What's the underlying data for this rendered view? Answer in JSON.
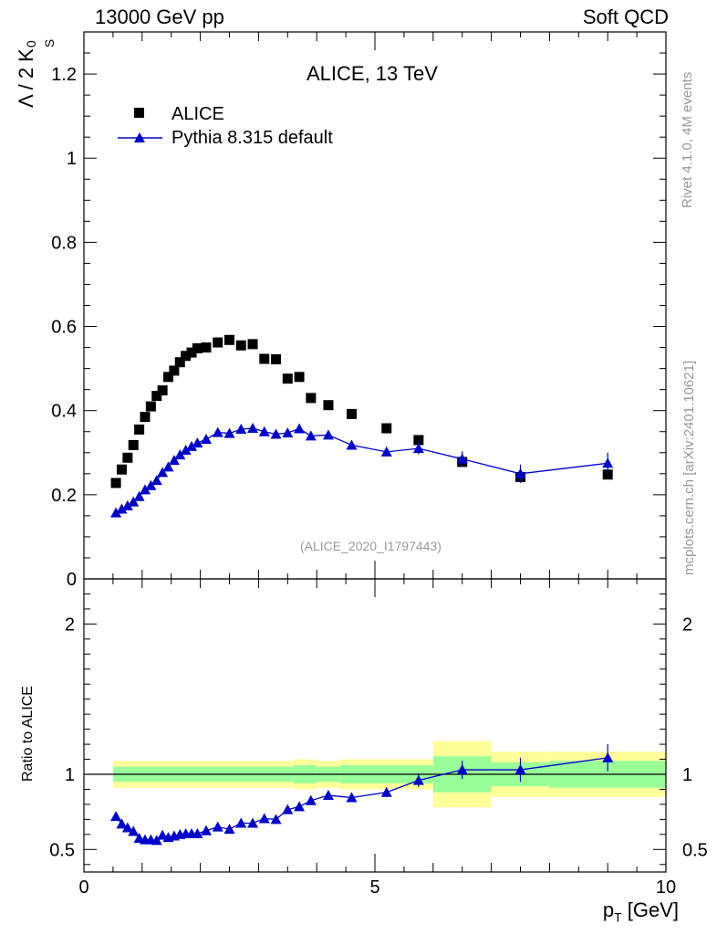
{
  "header": {
    "left": "13000 GeV pp",
    "right": "Soft QCD"
  },
  "side_labels": {
    "rivet": "Rivet 4.1.0,  4M events",
    "mcplots": "mcplots.cern.ch [arXiv:2401.10621]"
  },
  "colors": {
    "data": "#000000",
    "mc": "#0000cc",
    "band_inner": "#99ff99",
    "band_outer": "#ffff99",
    "watermark": "#999999"
  },
  "chart_data": [
    {
      "type": "scatter",
      "panel": "main",
      "title": "ALICE, 13 TeV",
      "watermark": "(ALICE_2020_I1797443)",
      "xlabel": "p_T [GeV]",
      "ylabel": "Λ / 2 K0S",
      "ylabel_parts": {
        "main": "Λ / 2 K",
        "sup": "0",
        "sub": "S"
      },
      "xlim": [
        0,
        10
      ],
      "ylim": [
        0,
        1.3
      ],
      "yticks": [
        0,
        0.2,
        0.4,
        0.6,
        0.8,
        1,
        1.2
      ],
      "ytick_labels": [
        "0",
        "0.2",
        "0.4",
        "0.6",
        "0.8",
        "1",
        "1.2"
      ],
      "legend_position": "top-left",
      "series": [
        {
          "name": "ALICE",
          "marker": "square",
          "x": [
            0.55,
            0.65,
            0.75,
            0.85,
            0.95,
            1.05,
            1.15,
            1.25,
            1.35,
            1.45,
            1.55,
            1.65,
            1.75,
            1.85,
            1.95,
            2.1,
            2.3,
            2.5,
            2.7,
            2.9,
            3.1,
            3.3,
            3.5,
            3.7,
            3.9,
            4.2,
            4.6,
            5.2,
            5.75,
            6.5,
            7.5,
            9.0
          ],
          "y": [
            0.228,
            0.26,
            0.288,
            0.318,
            0.355,
            0.385,
            0.41,
            0.435,
            0.448,
            0.48,
            0.495,
            0.515,
            0.53,
            0.538,
            0.548,
            0.55,
            0.562,
            0.568,
            0.555,
            0.558,
            0.523,
            0.522,
            0.476,
            0.48,
            0.43,
            0.413,
            0.392,
            0.358,
            0.33,
            0.278,
            0.242,
            0.248
          ]
        },
        {
          "name": "Pythia 8.315 default",
          "marker": "triangle",
          "x": [
            0.55,
            0.65,
            0.75,
            0.85,
            0.95,
            1.05,
            1.15,
            1.25,
            1.35,
            1.45,
            1.55,
            1.65,
            1.75,
            1.85,
            1.95,
            2.1,
            2.3,
            2.5,
            2.7,
            2.9,
            3.1,
            3.3,
            3.5,
            3.7,
            3.9,
            4.2,
            4.6,
            5.2,
            5.75,
            6.5,
            7.5,
            9.0
          ],
          "y": [
            0.157,
            0.166,
            0.174,
            0.183,
            0.196,
            0.212,
            0.222,
            0.234,
            0.253,
            0.266,
            0.282,
            0.295,
            0.306,
            0.315,
            0.323,
            0.332,
            0.348,
            0.346,
            0.356,
            0.358,
            0.35,
            0.344,
            0.347,
            0.357,
            0.34,
            0.342,
            0.318,
            0.302,
            0.31,
            0.285,
            0.25,
            0.275
          ],
          "yerr": [
            0.003,
            0.003,
            0.003,
            0.003,
            0.003,
            0.003,
            0.003,
            0.003,
            0.003,
            0.003,
            0.004,
            0.004,
            0.004,
            0.004,
            0.004,
            0.004,
            0.005,
            0.005,
            0.006,
            0.006,
            0.007,
            0.007,
            0.008,
            0.009,
            0.01,
            0.01,
            0.01,
            0.011,
            0.014,
            0.018,
            0.022,
            0.025
          ]
        }
      ]
    },
    {
      "type": "line",
      "panel": "ratio",
      "ylabel": "Ratio to ALICE",
      "xlim": [
        0,
        10
      ],
      "ylim": [
        0.35,
        2.3
      ],
      "xticks": [
        0,
        5,
        10
      ],
      "xtick_labels": [
        "0",
        "5",
        "10"
      ],
      "yticks": [
        0.5,
        1,
        2
      ],
      "ytick_labels": [
        "0.5",
        "1",
        "2"
      ],
      "reference_line": 1,
      "bands": [
        {
          "xlo": 0.5,
          "xhi": 3.6,
          "inner": 0.05,
          "outer": 0.09
        },
        {
          "xlo": 3.6,
          "xhi": 4.0,
          "inner": 0.06,
          "outer": 0.1
        },
        {
          "xlo": 4.0,
          "xhi": 4.4,
          "inner": 0.05,
          "outer": 0.09
        },
        {
          "xlo": 4.4,
          "xhi": 6.0,
          "inner": 0.06,
          "outer": 0.1
        },
        {
          "xlo": 6.0,
          "xhi": 7.0,
          "inner": 0.12,
          "outer": 0.22
        },
        {
          "xlo": 7.0,
          "xhi": 8.0,
          "inner": 0.08,
          "outer": 0.15
        },
        {
          "xlo": 8.0,
          "xhi": 10.0,
          "inner": 0.09,
          "outer": 0.15
        }
      ],
      "series": [
        {
          "name": "Pythia 8.315 default / ALICE",
          "x": [
            0.55,
            0.65,
            0.75,
            0.85,
            0.95,
            1.05,
            1.15,
            1.25,
            1.35,
            1.45,
            1.55,
            1.65,
            1.75,
            1.85,
            1.95,
            2.1,
            2.3,
            2.5,
            2.7,
            2.9,
            3.1,
            3.3,
            3.5,
            3.7,
            3.9,
            4.2,
            4.6,
            5.2,
            5.75,
            6.5,
            7.5,
            9.0
          ],
          "y": [
            0.72,
            0.67,
            0.645,
            0.62,
            0.575,
            0.565,
            0.565,
            0.56,
            0.595,
            0.58,
            0.59,
            0.6,
            0.605,
            0.605,
            0.605,
            0.625,
            0.65,
            0.635,
            0.675,
            0.675,
            0.705,
            0.7,
            0.765,
            0.785,
            0.825,
            0.86,
            0.845,
            0.88,
            0.96,
            1.03,
            1.03,
            1.11
          ],
          "yerr": [
            0.01,
            0.01,
            0.01,
            0.01,
            0.01,
            0.01,
            0.01,
            0.01,
            0.01,
            0.01,
            0.01,
            0.01,
            0.01,
            0.01,
            0.01,
            0.012,
            0.012,
            0.012,
            0.015,
            0.015,
            0.018,
            0.02,
            0.022,
            0.025,
            0.028,
            0.03,
            0.03,
            0.032,
            0.045,
            0.06,
            0.08,
            0.09
          ]
        }
      ]
    }
  ]
}
